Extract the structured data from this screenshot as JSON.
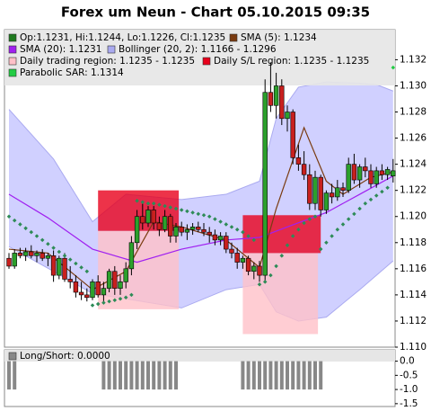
{
  "chart_data": [
    {
      "type": "candlestick",
      "title": "Forex um Neun - Chart 05.10.2015 09:35",
      "legend": [
        {
          "label": "Op:1.1231, Hi:1.1244, Lo:1.1226, Cl:1.1235",
          "color": "#1f7a1f"
        },
        {
          "label": "SMA (5): 1.1234",
          "color": "#7a3b10"
        },
        {
          "label": "SMA (20): 1.1231",
          "color": "#a020f0"
        },
        {
          "label": "Bollinger (20, 2): 1.1166 - 1.1296",
          "color": "#aaaaf0"
        },
        {
          "label": "Daily trading region: 1.1235 - 1.1235",
          "color": "#ffc0c8"
        },
        {
          "label": "Daily S/L region: 1.1235 - 1.1235",
          "color": "#e8001c"
        },
        {
          "label": "Parabolic SAR: 1.1314",
          "color": "#22cc44"
        }
      ],
      "up_color": "#2ca02c",
      "down_color": "#c8201e",
      "ylim": [
        1.11,
        1.1343
      ],
      "yticks": [
        {
          "value": 1.11,
          "label": "1.110"
        },
        1.112,
        1.114,
        1.116,
        1.118,
        {
          "value": 1.12,
          "label": "1.120"
        },
        1.122,
        1.124,
        1.126,
        1.128,
        {
          "value": 1.13,
          "label": "1.130"
        },
        1.132
      ],
      "candles": [
        [
          1.1168,
          1.1172,
          1.116,
          1.1162
        ],
        [
          1.1162,
          1.1175,
          1.116,
          1.1172
        ],
        [
          1.1172,
          1.1176,
          1.1168,
          1.117
        ],
        [
          1.117,
          1.1176,
          1.1166,
          1.1173
        ],
        [
          1.1173,
          1.1178,
          1.1168,
          1.117
        ],
        [
          1.117,
          1.1174,
          1.1165,
          1.1172
        ],
        [
          1.1172,
          1.1175,
          1.1166,
          1.1168
        ],
        [
          1.1168,
          1.1172,
          1.1162,
          1.117
        ],
        [
          1.117,
          1.1174,
          1.115,
          1.1155
        ],
        [
          1.1155,
          1.117,
          1.1152,
          1.1168
        ],
        [
          1.1168,
          1.1172,
          1.115,
          1.1152
        ],
        [
          1.1152,
          1.1162,
          1.1145,
          1.115
        ],
        [
          1.115,
          1.1155,
          1.1138,
          1.1142
        ],
        [
          1.1142,
          1.115,
          1.1136,
          1.114
        ],
        [
          1.114,
          1.1145,
          1.1135,
          1.1138
        ],
        [
          1.1138,
          1.1152,
          1.1136,
          1.115
        ],
        [
          1.115,
          1.1155,
          1.1138,
          1.114
        ],
        [
          1.114,
          1.115,
          1.1135,
          1.1145
        ],
        [
          1.1145,
          1.116,
          1.1142,
          1.1158
        ],
        [
          1.1158,
          1.1162,
          1.114,
          1.1145
        ],
        [
          1.1145,
          1.1155,
          1.114,
          1.115
        ],
        [
          1.115,
          1.1165,
          1.1145,
          1.116
        ],
        [
          1.116,
          1.1185,
          1.1155,
          1.118
        ],
        [
          1.118,
          1.1205,
          1.1175,
          1.12
        ],
        [
          1.12,
          1.121,
          1.119,
          1.1195
        ],
        [
          1.1195,
          1.1208,
          1.1192,
          1.1205
        ],
        [
          1.1205,
          1.1208,
          1.119,
          1.1195
        ],
        [
          1.1195,
          1.12,
          1.1185,
          1.119
        ],
        [
          1.119,
          1.1205,
          1.1188,
          1.12
        ],
        [
          1.12,
          1.1202,
          1.118,
          1.1185
        ],
        [
          1.1185,
          1.1195,
          1.118,
          1.1192
        ],
        [
          1.1192,
          1.1196,
          1.1185,
          1.1188
        ],
        [
          1.1188,
          1.1194,
          1.1182,
          1.119
        ],
        [
          1.119,
          1.1195,
          1.1186,
          1.1192
        ],
        [
          1.1192,
          1.1196,
          1.1188,
          1.119
        ],
        [
          1.119,
          1.1195,
          1.1185,
          1.1188
        ],
        [
          1.1188,
          1.1192,
          1.118,
          1.1186
        ],
        [
          1.1186,
          1.119,
          1.1178,
          1.1182
        ],
        [
          1.1182,
          1.1188,
          1.1178,
          1.1185
        ],
        [
          1.1185,
          1.1188,
          1.1172,
          1.1175
        ],
        [
          1.1175,
          1.118,
          1.1168,
          1.1172
        ],
        [
          1.1172,
          1.1176,
          1.116,
          1.1165
        ],
        [
          1.1165,
          1.117,
          1.116,
          1.1168
        ],
        [
          1.1168,
          1.117,
          1.1155,
          1.1158
        ],
        [
          1.1158,
          1.1165,
          1.1152,
          1.1162
        ],
        [
          1.1162,
          1.1166,
          1.115,
          1.1155
        ],
        [
          1.1155,
          1.1305,
          1.115,
          1.1295
        ],
        [
          1.1295,
          1.1318,
          1.128,
          1.1285
        ],
        [
          1.1285,
          1.131,
          1.1275,
          1.13
        ],
        [
          1.13,
          1.1305,
          1.127,
          1.1275
        ],
        [
          1.1275,
          1.1285,
          1.1265,
          1.128
        ],
        [
          1.128,
          1.1282,
          1.124,
          1.1245
        ],
        [
          1.1245,
          1.1255,
          1.1235,
          1.124
        ],
        [
          1.124,
          1.125,
          1.1228,
          1.1232
        ],
        [
          1.1232,
          1.124,
          1.1205,
          1.121
        ],
        [
          1.121,
          1.1235,
          1.1205,
          1.123
        ],
        [
          1.123,
          1.1232,
          1.12,
          1.1205
        ],
        [
          1.1205,
          1.122,
          1.1202,
          1.1218
        ],
        [
          1.1218,
          1.1225,
          1.121,
          1.1215
        ],
        [
          1.1215,
          1.1228,
          1.1212,
          1.1222
        ],
        [
          1.1222,
          1.1226,
          1.1215,
          1.122
        ],
        [
          1.122,
          1.1245,
          1.1218,
          1.124
        ],
        [
          1.124,
          1.1248,
          1.1225,
          1.1228
        ],
        [
          1.1228,
          1.124,
          1.1222,
          1.1238
        ],
        [
          1.1238,
          1.1245,
          1.123,
          1.1235
        ],
        [
          1.1235,
          1.124,
          1.1222,
          1.1225
        ],
        [
          1.1225,
          1.1238,
          1.1222,
          1.1235
        ],
        [
          1.1235,
          1.124,
          1.1228,
          1.1232
        ],
        [
          1.1232,
          1.1238,
          1.1228,
          1.1236
        ],
        [
          1.1231,
          1.1244,
          1.1226,
          1.1235
        ]
      ],
      "bollinger": {
        "x": [
          0,
          8,
          15,
          21,
          31,
          39,
          45,
          48,
          52,
          57,
          63,
          66,
          69
        ],
        "upper": [
          1.1282,
          1.1244,
          1.1196,
          1.1217,
          1.1213,
          1.1217,
          1.1227,
          1.1275,
          1.1299,
          1.1303,
          1.1302,
          1.1301,
          1.1296
        ],
        "lower": [
          1.1177,
          1.1158,
          1.1141,
          1.1137,
          1.113,
          1.1144,
          1.1148,
          1.1127,
          1.112,
          1.1123,
          1.1144,
          1.1155,
          1.1166
        ],
        "fill": "#c8c8ff"
      },
      "sma20": {
        "x": [
          0,
          7,
          15,
          23,
          31,
          39,
          45,
          50,
          57,
          63,
          69
        ],
        "values": [
          1.1217,
          1.1199,
          1.1175,
          1.1165,
          1.1175,
          1.1182,
          1.1184,
          1.1192,
          1.1203,
          1.1217,
          1.1231
        ]
      },
      "sma5": {
        "x": [
          0,
          7,
          15,
          21,
          26,
          31,
          39,
          45,
          48,
          53,
          57,
          60,
          65,
          69
        ],
        "values": [
          1.1175,
          1.1172,
          1.1144,
          1.1158,
          1.1196,
          1.1192,
          1.1182,
          1.1161,
          1.1206,
          1.1268,
          1.1227,
          1.1217,
          1.123,
          1.1234
        ]
      },
      "trading_regions": [
        {
          "x0": 16,
          "x1": 30.5,
          "low": 1.1129,
          "high": 1.1189
        },
        {
          "x0": 42,
          "x1": 55.5,
          "low": 1.111,
          "high": 1.1172
        }
      ],
      "sl_regions": [
        {
          "x0": 16,
          "x1": 30.5,
          "low": 1.1189,
          "high": 1.122
        },
        {
          "x0": 42,
          "x1": 56,
          "low": 1.1172,
          "high": 1.1201
        }
      ],
      "sar_color": "#2e8b57",
      "sar": [
        1.12,
        1.1197,
        1.1194,
        1.1191,
        1.1188,
        1.1185,
        1.1182,
        1.1179,
        1.1176,
        1.1173,
        1.117,
        1.1167,
        1.1164,
        1.1161,
        1.1158,
        1.1132,
        1.1133,
        1.1134,
        1.1135,
        1.1136,
        1.1137,
        1.1138,
        1.114,
        1.1212,
        1.1211,
        1.121,
        1.121,
        1.1209,
        1.1208,
        1.1207,
        1.1206,
        1.1205,
        1.1204,
        1.1203,
        1.1202,
        1.1201,
        1.12,
        1.1198,
        1.1196,
        1.1194,
        1.1192,
        1.119,
        1.1188,
        1.1185,
        1.1182,
        1.1148,
        1.115,
        1.1155,
        1.1162,
        1.117,
        1.1178,
        1.1185,
        1.119,
        1.1195,
        1.1198,
        1.12,
        1.1175,
        1.118,
        1.1185,
        1.119,
        1.1194,
        1.1198,
        1.1202,
        1.1206,
        1.121,
        1.1213,
        1.1216,
        1.1219,
        1.1222,
        1.1314
      ]
    },
    {
      "type": "bar",
      "legend": [
        {
          "label": "Long/Short: 0.0000",
          "color": "#888888"
        }
      ],
      "color": "#888888",
      "ylim": [
        -1.6,
        0.4
      ],
      "yticks": [
        {
          "value": 0,
          "label": "0.0"
        },
        -0.5,
        {
          "value": -1,
          "label": "-1.0"
        },
        -1.5
      ],
      "values": [
        -1,
        -1,
        0,
        0,
        0,
        0,
        0,
        0,
        0,
        0,
        0,
        0,
        0,
        0,
        0,
        0,
        0,
        -1,
        -1,
        -1,
        -1,
        -1,
        -1,
        -1,
        -1,
        -1,
        -1,
        -1,
        -1,
        -1,
        -1,
        0,
        0,
        0,
        0,
        0,
        0,
        0,
        0,
        0,
        0,
        0,
        -1,
        -1,
        -1,
        -1,
        -1,
        -1,
        -1,
        -1,
        -1,
        -1,
        -1,
        -1,
        -1,
        -1,
        -1,
        0,
        0,
        0,
        0,
        0,
        0,
        0,
        0,
        0,
        0,
        0,
        0,
        0
      ]
    }
  ]
}
